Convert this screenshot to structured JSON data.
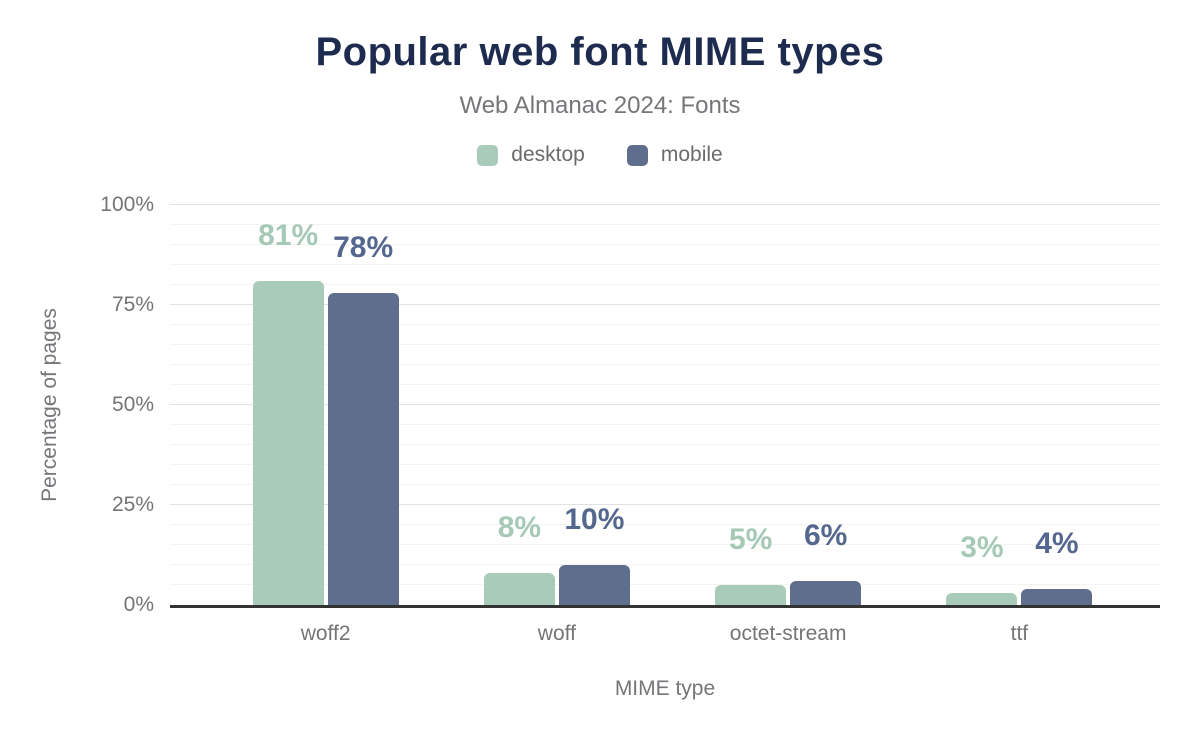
{
  "figure": {
    "title": "Popular web font MIME types",
    "subtitle": "Web Almanac 2024: Fonts"
  },
  "legend": {
    "items": [
      {
        "label": "desktop",
        "color": "#a9cbb9"
      },
      {
        "label": "mobile",
        "color": "#5f6e8c"
      }
    ]
  },
  "chart_data": {
    "type": "bar",
    "title": "Popular web font MIME types",
    "subtitle": "Web Almanac 2024: Fonts",
    "categories": [
      "woff2",
      "woff",
      "octet-stream",
      "ttf"
    ],
    "series": [
      {
        "name": "desktop",
        "color": "#a9cbb9",
        "label_color": "#a6c9b6",
        "values": [
          81,
          8,
          5,
          3
        ]
      },
      {
        "name": "mobile",
        "color": "#5f6e8c",
        "label_color": "#54678e",
        "values": [
          78,
          10,
          6,
          4
        ]
      }
    ],
    "value_suffix": "%",
    "xlabel": "MIME type",
    "ylabel": "Percentage of pages",
    "ylim": [
      0,
      100
    ],
    "yticks": [
      0,
      25,
      50,
      75,
      100
    ],
    "ytick_labels": [
      "0%",
      "25%",
      "50%",
      "75%",
      "100%"
    ],
    "grid": {
      "on": true,
      "minor_step": 5,
      "major_step": 25
    },
    "legend_position": "top"
  },
  "colors": {
    "title": "#1d2b4f",
    "text_muted": "#76767a",
    "tick_text": "#757575",
    "axis_line": "#333333",
    "grid_major": "#e2e2e2",
    "grid_minor": "#f3f3f3",
    "background": "#ffffff"
  }
}
